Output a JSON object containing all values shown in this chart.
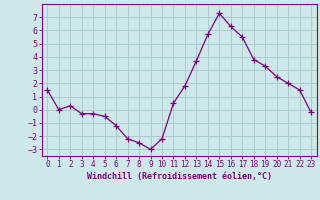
{
  "x": [
    0,
    1,
    2,
    3,
    4,
    5,
    6,
    7,
    8,
    9,
    10,
    11,
    12,
    13,
    14,
    15,
    16,
    17,
    18,
    19,
    20,
    21,
    22,
    23
  ],
  "y": [
    1.5,
    0.0,
    0.3,
    -0.3,
    -0.3,
    -0.5,
    -1.2,
    -2.2,
    -2.5,
    -3.0,
    -2.2,
    0.5,
    1.8,
    3.7,
    5.7,
    7.3,
    6.3,
    5.5,
    3.8,
    3.3,
    2.5,
    2.0,
    1.5,
    -0.2
  ],
  "line_color": "#800080",
  "marker": "+",
  "marker_size": 4,
  "bg_color": "#cce8e8",
  "grid_color": "#aacccc",
  "axis_color": "#800080",
  "tick_color": "#800080",
  "xlabel": "Windchill (Refroidissement éolien,°C)",
  "ylabel": "",
  "title": "",
  "xlim": [
    -0.5,
    23.5
  ],
  "ylim": [
    -3.5,
    8.0
  ],
  "yticks": [
    -3,
    -2,
    -1,
    0,
    1,
    2,
    3,
    4,
    5,
    6,
    7
  ],
  "xticks": [
    0,
    1,
    2,
    3,
    4,
    5,
    6,
    7,
    8,
    9,
    10,
    11,
    12,
    13,
    14,
    15,
    16,
    17,
    18,
    19,
    20,
    21,
    22,
    23
  ],
  "xtick_labels": [
    "0",
    "1",
    "2",
    "3",
    "4",
    "5",
    "6",
    "7",
    "8",
    "9",
    "10",
    "11",
    "12",
    "13",
    "14",
    "15",
    "16",
    "17",
    "18",
    "19",
    "20",
    "21",
    "22",
    "23"
  ]
}
